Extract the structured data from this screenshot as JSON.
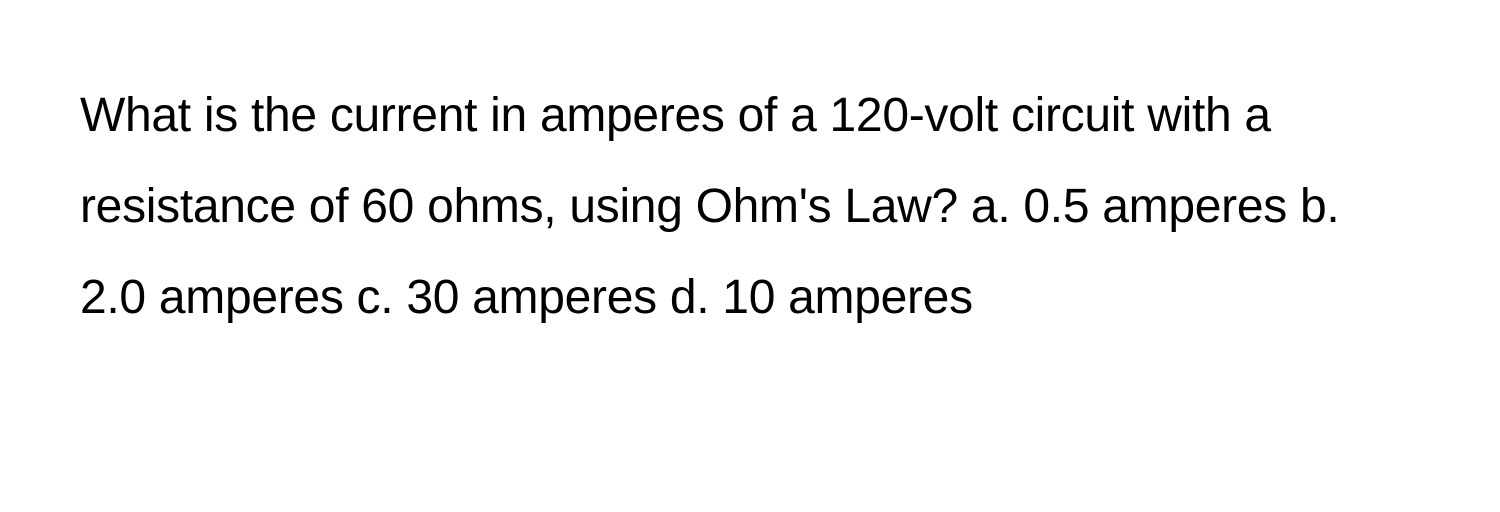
{
  "question": {
    "text": "What is the current in amperes of a 120-volt circuit with a resistance of 60 ohms, using Ohm's Law? a. 0.5 amperes b. 2.0 amperes c. 30 amperes d. 10 amperes",
    "font_size": 48,
    "line_height": 1.9,
    "text_color": "#000000",
    "background_color": "#ffffff"
  }
}
